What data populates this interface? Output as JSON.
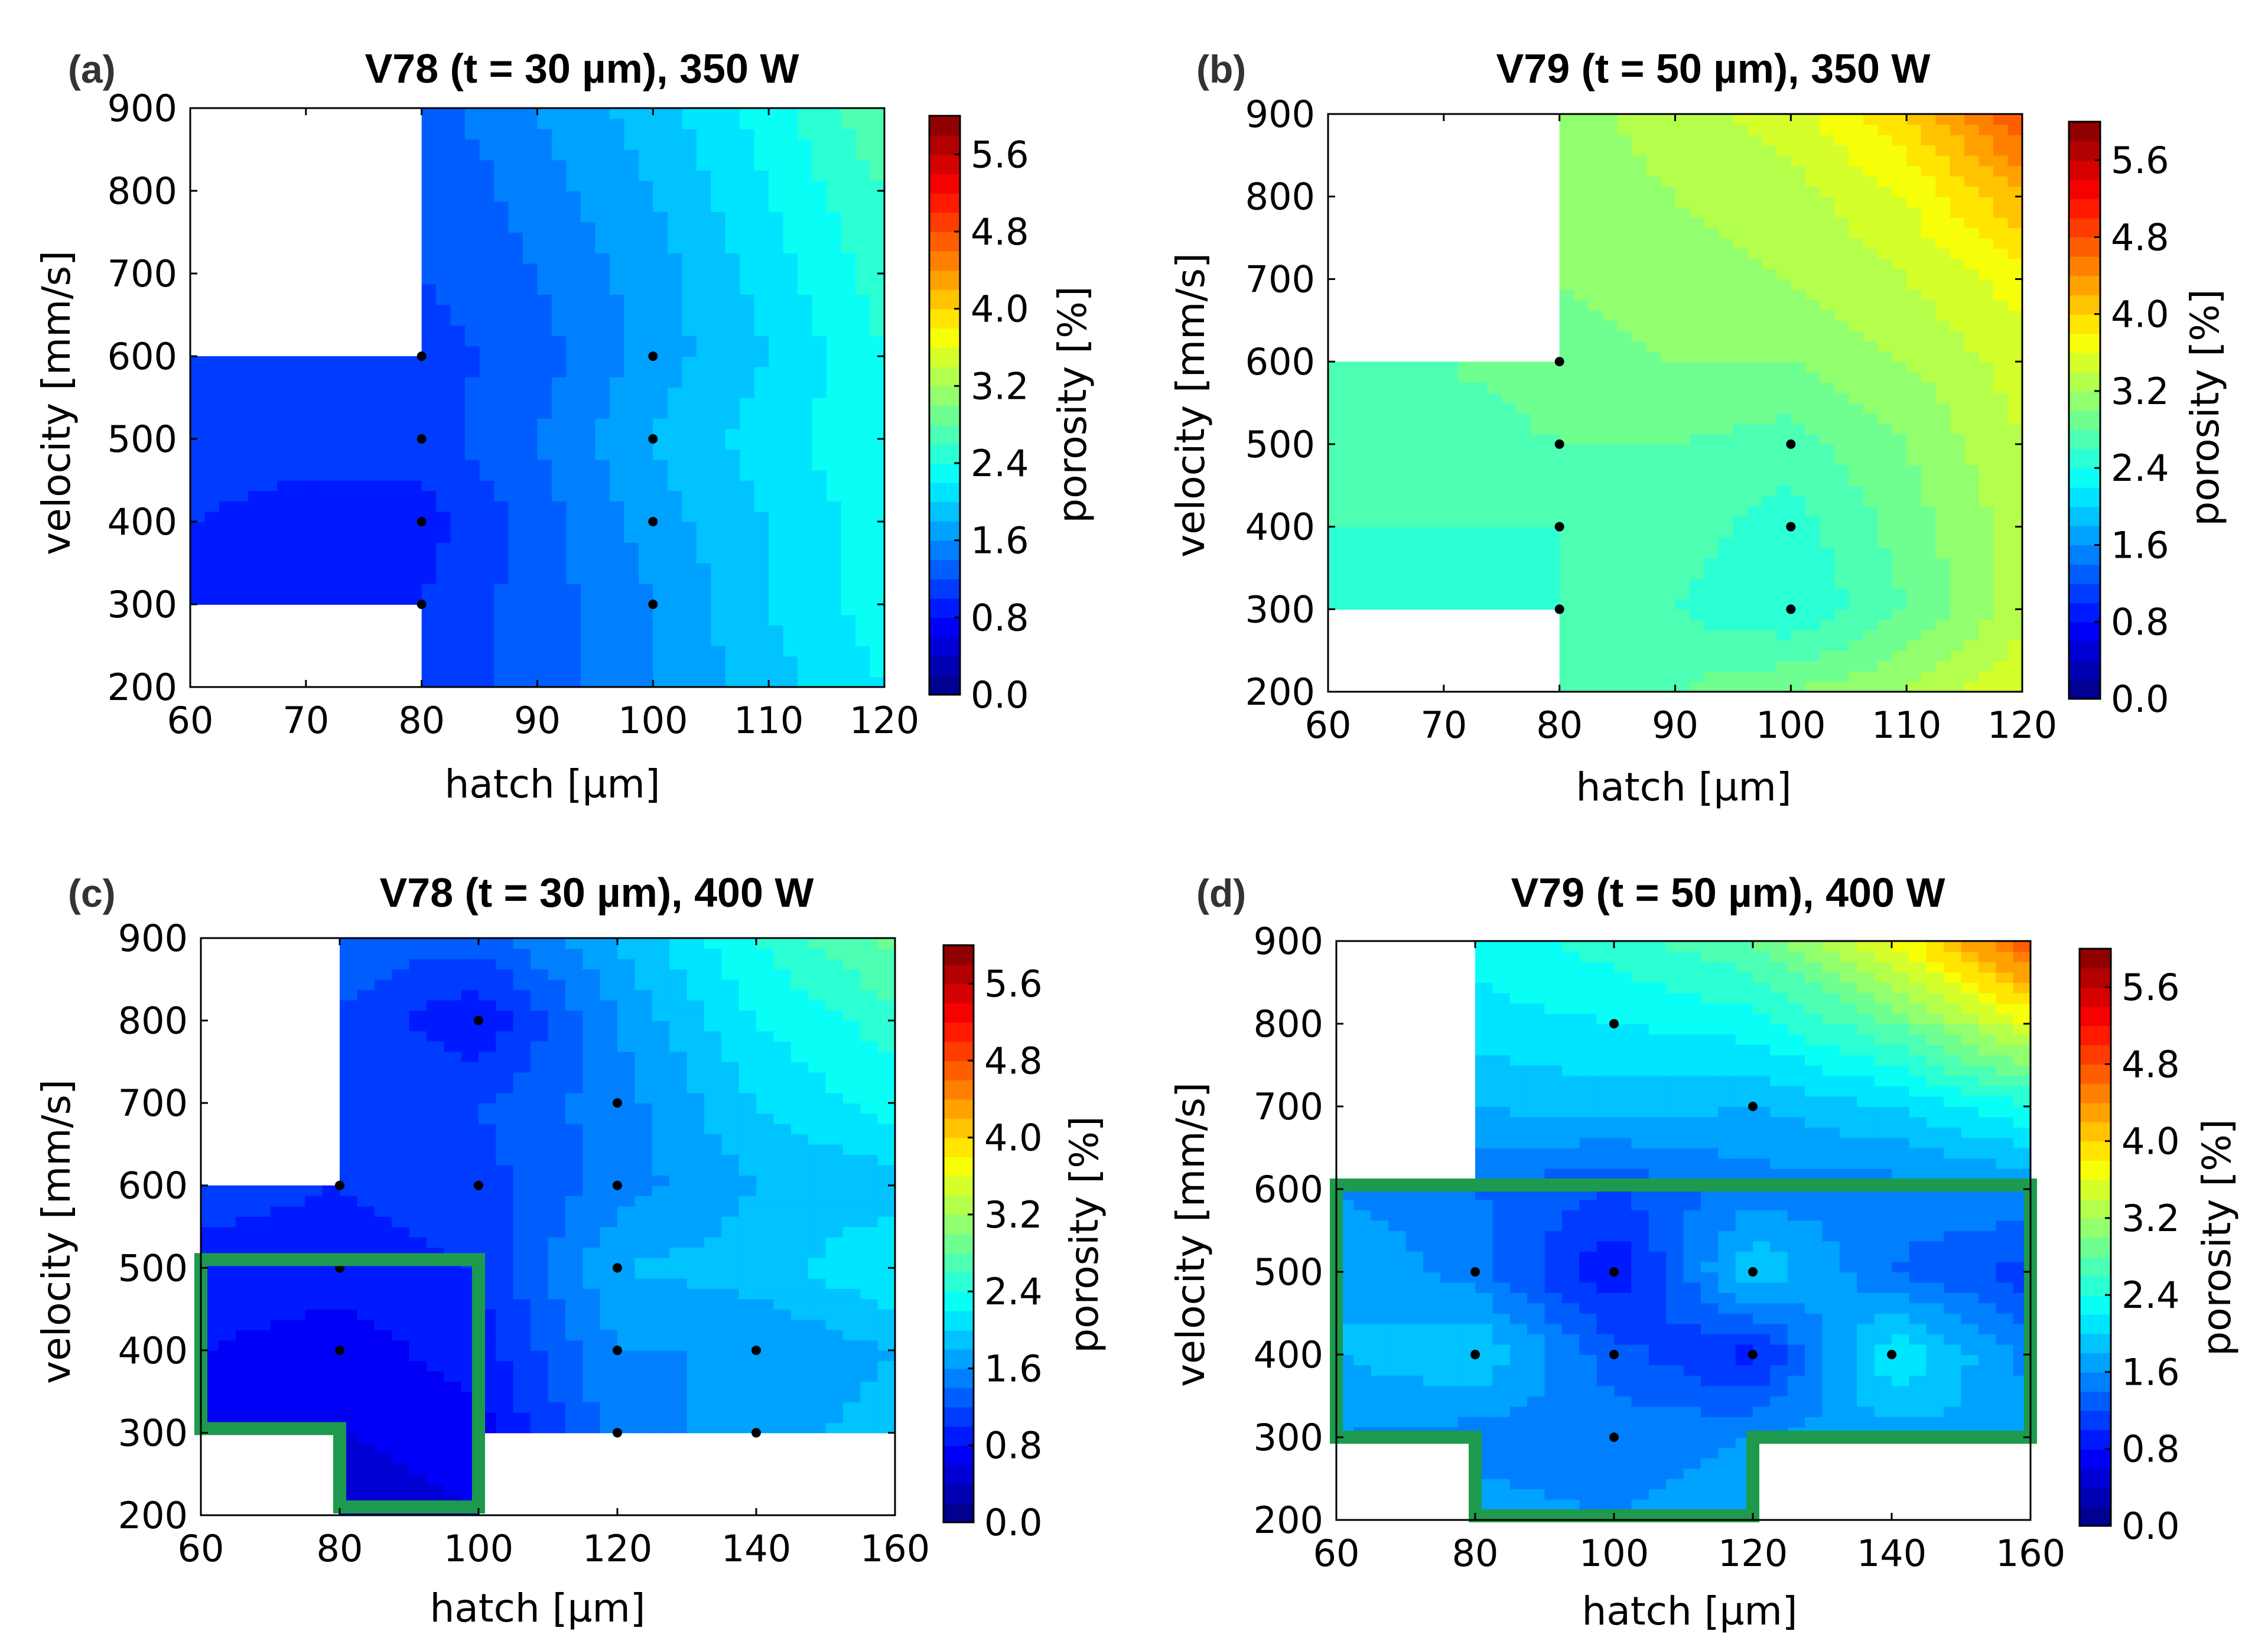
{
  "chart_data": [
    {
      "type": "contour",
      "panel_label": "(a)",
      "title": "V78 (t = 30 µm), 350 W",
      "xlabel": "hatch [µm]",
      "ylabel": "velocity [mm/s]",
      "xlim": [
        60,
        120
      ],
      "ylim": [
        200,
        900
      ],
      "xticks": [
        60,
        70,
        80,
        90,
        100,
        110,
        120
      ],
      "yticks": [
        200,
        300,
        400,
        500,
        600,
        700,
        800,
        900
      ],
      "colorbar_label": "porosity [%]",
      "colorbar_ticks": [
        "0.0",
        "0.8",
        "1.6",
        "2.4",
        "3.2",
        "4.0",
        "4.8",
        "5.6"
      ],
      "colorbar_range": [
        0,
        6.0
      ],
      "grid_x": [
        60,
        70,
        80,
        90,
        100,
        110,
        120
      ],
      "grid_y": [
        200,
        300,
        400,
        500,
        600,
        700,
        800,
        900
      ],
      "grid_z": [
        [
          null,
          null,
          1.0,
          1.3,
          1.6,
          1.9,
          2.2
        ],
        [
          0.9,
          0.9,
          1.0,
          1.3,
          1.6,
          2.0,
          2.3
        ],
        [
          1.0,
          0.9,
          0.9,
          1.3,
          1.7,
          2.0,
          2.3
        ],
        [
          1.1,
          1.1,
          1.1,
          1.4,
          1.8,
          2.1,
          2.4
        ],
        [
          1.0,
          1.0,
          1.1,
          1.3,
          1.7,
          2.0,
          2.4
        ],
        [
          null,
          null,
          1.2,
          1.4,
          1.7,
          2.1,
          2.5
        ],
        [
          null,
          null,
          1.2,
          1.5,
          1.8,
          2.2,
          2.6
        ],
        [
          null,
          null,
          1.3,
          1.6,
          1.9,
          2.3,
          2.8
        ]
      ],
      "measured_points": [
        [
          80,
          300
        ],
        [
          80,
          400
        ],
        [
          80,
          500
        ],
        [
          80,
          600
        ],
        [
          100,
          300
        ],
        [
          100,
          400
        ],
        [
          100,
          500
        ],
        [
          100,
          600
        ]
      ],
      "highlight_region": []
    },
    {
      "type": "contour",
      "panel_label": "(b)",
      "title": "V79 (t = 50 µm), 350 W",
      "xlabel": "hatch [µm]",
      "ylabel": "velocity [mm/s]",
      "xlim": [
        60,
        120
      ],
      "ylim": [
        200,
        900
      ],
      "xticks": [
        60,
        70,
        80,
        90,
        100,
        110,
        120
      ],
      "yticks": [
        200,
        300,
        400,
        500,
        600,
        700,
        800,
        900
      ],
      "colorbar_label": "porosity [%]",
      "colorbar_ticks": [
        "0.0",
        "0.8",
        "1.6",
        "2.4",
        "3.2",
        "4.0",
        "4.8",
        "5.6"
      ],
      "colorbar_range": [
        0,
        6.0
      ],
      "grid_x": [
        60,
        70,
        80,
        90,
        100,
        110,
        120
      ],
      "grid_y": [
        200,
        300,
        400,
        500,
        600,
        700,
        800,
        900
      ],
      "grid_z": [
        [
          null,
          null,
          2.7,
          2.8,
          3.0,
          3.2,
          3.6
        ],
        [
          2.5,
          2.5,
          2.6,
          2.6,
          2.4,
          2.8,
          3.3
        ],
        [
          2.6,
          2.6,
          2.6,
          2.7,
          2.5,
          2.9,
          3.3
        ],
        [
          2.7,
          2.7,
          2.8,
          2.8,
          2.7,
          3.0,
          3.4
        ],
        [
          2.8,
          2.8,
          2.9,
          3.0,
          3.0,
          3.2,
          3.5
        ],
        [
          null,
          null,
          3.0,
          3.1,
          3.2,
          3.4,
          3.7
        ],
        [
          null,
          null,
          3.1,
          3.2,
          3.3,
          3.6,
          4.2
        ],
        [
          null,
          null,
          3.1,
          3.3,
          3.5,
          4.0,
          4.8
        ]
      ],
      "measured_points": [
        [
          80,
          300
        ],
        [
          80,
          400
        ],
        [
          80,
          500
        ],
        [
          80,
          600
        ],
        [
          100,
          300
        ],
        [
          100,
          400
        ],
        [
          100,
          500
        ]
      ],
      "highlight_region": []
    },
    {
      "type": "contour",
      "panel_label": "(c)",
      "title": "V78 (t = 30 µm), 400 W",
      "xlabel": "hatch [µm]",
      "ylabel": "velocity [mm/s]",
      "xlim": [
        60,
        160
      ],
      "ylim": [
        200,
        900
      ],
      "xticks": [
        60,
        80,
        100,
        120,
        140,
        160
      ],
      "yticks": [
        200,
        300,
        400,
        500,
        600,
        700,
        800,
        900
      ],
      "colorbar_label": "porosity [%]",
      "colorbar_ticks": [
        "0.0",
        "0.8",
        "1.6",
        "2.4",
        "3.2",
        "4.0",
        "4.8",
        "5.6"
      ],
      "colorbar_range": [
        0,
        6.0
      ],
      "grid_x": [
        60,
        80,
        100,
        120,
        140,
        160
      ],
      "grid_y": [
        200,
        300,
        400,
        500,
        600,
        700,
        800,
        900
      ],
      "grid_z": [
        [
          null,
          0.5,
          0.6,
          null,
          null,
          null
        ],
        [
          0.7,
          0.6,
          0.7,
          1.5,
          1.7,
          1.9
        ],
        [
          0.8,
          0.7,
          0.9,
          1.6,
          1.6,
          1.8
        ],
        [
          0.9,
          0.9,
          1.0,
          1.8,
          1.9,
          2.2
        ],
        [
          1.1,
          1.0,
          1.1,
          1.5,
          1.8,
          1.9
        ],
        [
          null,
          1.1,
          1.2,
          1.5,
          2.0,
          2.3
        ],
        [
          null,
          1.2,
          0.8,
          1.6,
          2.2,
          2.5
        ],
        [
          null,
          1.3,
          1.3,
          1.8,
          2.4,
          2.9
        ]
      ],
      "measured_points": [
        [
          80,
          400
        ],
        [
          80,
          500
        ],
        [
          80,
          600
        ],
        [
          100,
          600
        ],
        [
          100,
          800
        ],
        [
          120,
          300
        ],
        [
          120,
          400
        ],
        [
          120,
          500
        ],
        [
          120,
          600
        ],
        [
          120,
          700
        ],
        [
          140,
          300
        ],
        [
          140,
          400
        ]
      ],
      "highlight_region": [
        [
          60,
          510
        ],
        [
          100,
          510
        ],
        [
          100,
          210
        ],
        [
          80,
          210
        ],
        [
          80,
          305
        ],
        [
          60,
          305
        ]
      ]
    },
    {
      "type": "contour",
      "panel_label": "(d)",
      "title": "V79 (t = 50 µm), 400 W",
      "xlabel": "hatch [µm]",
      "ylabel": "velocity [mm/s]",
      "xlim": [
        60,
        160
      ],
      "ylim": [
        200,
        900
      ],
      "xticks": [
        60,
        80,
        100,
        120,
        140,
        160
      ],
      "yticks": [
        200,
        300,
        400,
        500,
        600,
        700,
        800,
        900
      ],
      "colorbar_label": "porosity [%]",
      "colorbar_ticks": [
        "0.0",
        "0.8",
        "1.6",
        "2.4",
        "3.2",
        "4.0",
        "4.8",
        "5.6"
      ],
      "colorbar_range": [
        0,
        6.0
      ],
      "grid_x": [
        60,
        80,
        100,
        120,
        140,
        160
      ],
      "grid_y": [
        200,
        300,
        400,
        500,
        600,
        700,
        800,
        900
      ],
      "grid_z": [
        [
          null,
          1.7,
          1.6,
          1.7,
          null,
          null
        ],
        [
          1.6,
          1.5,
          1.5,
          1.6,
          1.7,
          1.8
        ],
        [
          1.8,
          2.0,
          1.3,
          0.9,
          2.2,
          1.5
        ],
        [
          1.8,
          1.5,
          0.8,
          2.0,
          1.4,
          1.1
        ],
        [
          1.6,
          1.4,
          1.2,
          1.5,
          1.5,
          1.6
        ],
        [
          null,
          1.8,
          1.9,
          1.8,
          2.0,
          2.4
        ],
        [
          null,
          2.1,
          2.2,
          2.3,
          2.8,
          3.6
        ],
        [
          null,
          2.3,
          2.5,
          2.8,
          3.6,
          4.8
        ]
      ],
      "measured_points": [
        [
          80,
          400
        ],
        [
          80,
          500
        ],
        [
          100,
          300
        ],
        [
          100,
          400
        ],
        [
          100,
          500
        ],
        [
          100,
          800
        ],
        [
          120,
          400
        ],
        [
          120,
          500
        ],
        [
          120,
          700
        ],
        [
          140,
          400
        ]
      ],
      "highlight_region": [
        [
          60,
          605
        ],
        [
          160,
          605
        ],
        [
          160,
          300
        ],
        [
          120,
          300
        ],
        [
          120,
          205
        ],
        [
          80,
          205
        ],
        [
          80,
          300
        ],
        [
          60,
          300
        ]
      ]
    }
  ]
}
